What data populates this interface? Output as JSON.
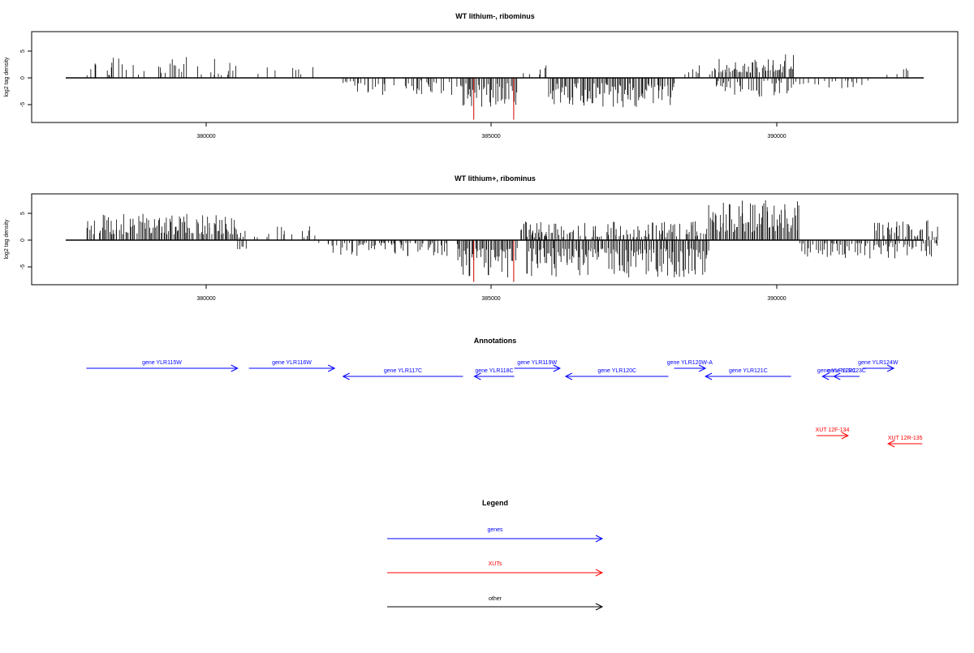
{
  "panels": [
    {
      "title": "WT lithium-, ribominus",
      "ylabel": "log2 tag density",
      "yticks": [
        "5",
        "0",
        "-5"
      ],
      "xticks": [
        "380000",
        "385000",
        "390000"
      ]
    },
    {
      "title": "WT lithium+, ribominus",
      "ylabel": "log2 tag density",
      "yticks": [
        "5",
        "0",
        "-5"
      ],
      "xticks": [
        "380000",
        "385000",
        "390000"
      ]
    }
  ],
  "annotations": {
    "title": "Annotations",
    "genes": [
      {
        "label": "gene YLR115W",
        "start": 377900,
        "end": 380550,
        "strand": "+"
      },
      {
        "label": "gene YLR116W",
        "start": 380750,
        "end": 382250,
        "strand": "+"
      },
      {
        "label": "gene YLR117C",
        "start": 382400,
        "end": 384500,
        "strand": "-"
      },
      {
        "label": "gene YLR118C",
        "start": 384700,
        "end": 385400,
        "strand": "-"
      },
      {
        "label": "gene YLR119W",
        "start": 385400,
        "end": 386200,
        "strand": "+"
      },
      {
        "label": "gene YLR120C",
        "start": 386300,
        "end": 388100,
        "strand": "-"
      },
      {
        "label": "gene YLR120W-A",
        "start": 388200,
        "end": 388750,
        "strand": "+"
      },
      {
        "label": "gene YLR121C",
        "start": 388750,
        "end": 390250,
        "strand": "-"
      },
      {
        "label": "gene YLR122C",
        "start": 390800,
        "end": 391300,
        "strand": "-"
      },
      {
        "label": "gene YLR123C",
        "start": 391000,
        "end": 391450,
        "strand": "-"
      },
      {
        "label": "gene YLR124W",
        "start": 391500,
        "end": 392050,
        "strand": "+"
      }
    ],
    "xuts": [
      {
        "label": "XUT 12F-134",
        "start": 390700,
        "end": 391250,
        "strand": "+"
      },
      {
        "label": "XUT 12R-135",
        "start": 391950,
        "end": 392550,
        "strand": "-"
      }
    ]
  },
  "legend": {
    "title": "Legend",
    "items": [
      {
        "label": "genes",
        "color": "#0000ff"
      },
      {
        "label": "XUTs",
        "color": "#ff0000"
      },
      {
        "label": "other",
        "color": "#000000"
      }
    ]
  },
  "chart_data": [
    {
      "type": "bar",
      "title": "WT lithium-, ribominus",
      "ylabel": "log2 tag density",
      "xlim": [
        377500,
        392800
      ],
      "ylim": [
        -8,
        8
      ],
      "regions": [
        {
          "start": 377900,
          "end": 380500,
          "sign": 1,
          "min": 0.5,
          "max": 4.0,
          "density": 0.35
        },
        {
          "start": 380900,
          "end": 381900,
          "sign": 1,
          "min": 0.5,
          "max": 3.0,
          "density": 0.22
        },
        {
          "start": 382400,
          "end": 384400,
          "sign": -1,
          "min": 0.5,
          "max": 3.2,
          "density": 0.45
        },
        {
          "start": 384450,
          "end": 385450,
          "sign": -1,
          "min": 1.0,
          "max": 5.5,
          "density": 0.9
        },
        {
          "start": 385500,
          "end": 386000,
          "sign": 1,
          "min": 0.5,
          "max": 2.8,
          "density": 0.4
        },
        {
          "start": 386000,
          "end": 388200,
          "sign": -1,
          "min": 1.0,
          "max": 5.5,
          "density": 0.95
        },
        {
          "start": 388300,
          "end": 388900,
          "sign": 1,
          "min": 0.5,
          "max": 2.5,
          "density": 0.4
        },
        {
          "start": 388900,
          "end": 390300,
          "sign": 1,
          "min": 1.0,
          "max": 4.5,
          "density": 0.9
        },
        {
          "start": 388900,
          "end": 390300,
          "sign": -1,
          "min": 0.5,
          "max": 3.5,
          "density": 0.5
        },
        {
          "start": 390300,
          "end": 391600,
          "sign": -1,
          "min": 0.5,
          "max": 2.0,
          "density": 0.3
        },
        {
          "start": 391900,
          "end": 392350,
          "sign": 1,
          "min": 0.5,
          "max": 2.5,
          "density": 0.3
        }
      ],
      "highlight": {
        "color": "#cc0000",
        "positions": [
          384690,
          385390
        ],
        "value": -7.8
      }
    },
    {
      "type": "bar",
      "title": "WT lithium+, ribominus",
      "ylabel": "log2 tag density",
      "xlim": [
        377500,
        392800
      ],
      "ylim": [
        -8,
        8
      ],
      "regions": [
        {
          "start": 377900,
          "end": 380550,
          "sign": 1,
          "min": 1.0,
          "max": 5.0,
          "density": 0.95
        },
        {
          "start": 380550,
          "end": 381900,
          "sign": 1,
          "min": 0.5,
          "max": 3.0,
          "density": 0.35
        },
        {
          "start": 380550,
          "end": 380700,
          "sign": -1,
          "min": 0.5,
          "max": 2.5,
          "density": 0.6
        },
        {
          "start": 381900,
          "end": 382300,
          "sign": -1,
          "min": 0.5,
          "max": 2.5,
          "density": 0.3
        },
        {
          "start": 382300,
          "end": 384400,
          "sign": -1,
          "min": 0.5,
          "max": 3.0,
          "density": 0.7
        },
        {
          "start": 384400,
          "end": 385450,
          "sign": -1,
          "min": 1.5,
          "max": 7.0,
          "density": 1.0
        },
        {
          "start": 385500,
          "end": 386000,
          "sign": 1,
          "min": 0.5,
          "max": 3.5,
          "density": 0.7
        },
        {
          "start": 385600,
          "end": 388800,
          "sign": -1,
          "min": 1.5,
          "max": 7.0,
          "density": 1.0
        },
        {
          "start": 385600,
          "end": 388800,
          "sign": 1,
          "min": 0.5,
          "max": 3.5,
          "density": 0.6
        },
        {
          "start": 388800,
          "end": 390400,
          "sign": 1,
          "min": 1.5,
          "max": 7.5,
          "density": 1.0
        },
        {
          "start": 390400,
          "end": 392800,
          "sign": -1,
          "min": 0.5,
          "max": 3.5,
          "density": 0.7
        },
        {
          "start": 391700,
          "end": 392800,
          "sign": 1,
          "min": 0.5,
          "max": 4.0,
          "density": 0.7
        }
      ],
      "highlight": {
        "color": "#cc0000",
        "positions": [
          384690,
          385390
        ],
        "value": -7.8
      }
    }
  ]
}
